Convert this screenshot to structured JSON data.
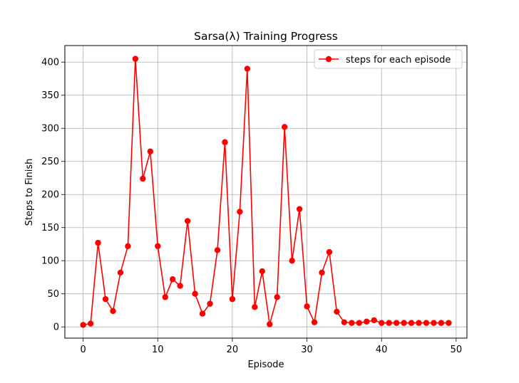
{
  "chart_data": {
    "type": "line",
    "title": "Sarsa(λ) Training Progress",
    "xlabel": "Episode",
    "ylabel": "Steps to Finish",
    "xlim": [
      -2.45,
      51.45
    ],
    "ylim": [
      -17,
      425
    ],
    "xticks": [
      0,
      10,
      20,
      30,
      40,
      50
    ],
    "yticks": [
      0,
      50,
      100,
      150,
      200,
      250,
      300,
      350,
      400
    ],
    "grid": true,
    "legend_position": "top-right",
    "series": [
      {
        "name": "steps for each episode",
        "color": "#ff0000",
        "marker": "circle",
        "x": [
          0,
          1,
          2,
          3,
          4,
          5,
          6,
          7,
          8,
          9,
          10,
          11,
          12,
          13,
          14,
          15,
          16,
          17,
          18,
          19,
          20,
          21,
          22,
          23,
          24,
          25,
          26,
          27,
          28,
          29,
          30,
          31,
          32,
          33,
          34,
          35,
          36,
          37,
          38,
          39,
          40,
          41,
          42,
          43,
          44,
          45,
          46,
          47,
          48,
          49
        ],
        "values": [
          3,
          5,
          127,
          42,
          24,
          82,
          122,
          405,
          224,
          265,
          122,
          45,
          72,
          62,
          160,
          50,
          20,
          35,
          116,
          279,
          42,
          174,
          390,
          30,
          84,
          4,
          45,
          302,
          100,
          178,
          31,
          7,
          82,
          113,
          23,
          7,
          6,
          6,
          8,
          10,
          6,
          6,
          6,
          6,
          6,
          6,
          6,
          6,
          6,
          6
        ]
      }
    ]
  }
}
